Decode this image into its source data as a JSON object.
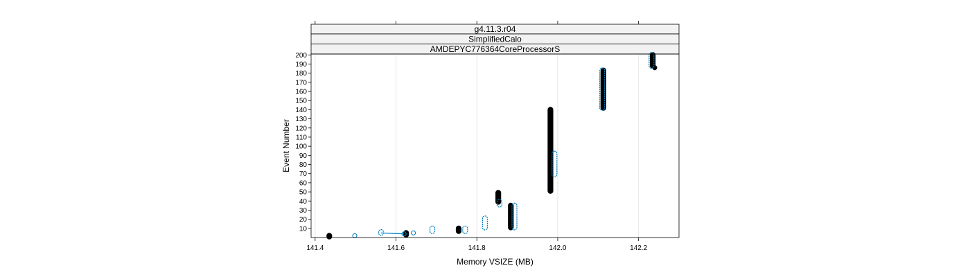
{
  "chart_data": {
    "type": "scatter",
    "strips": [
      "g4.11.3.r04",
      "SimplifiedCalo",
      "AMDEPYC776364CoreProcessorS"
    ],
    "xlabel": "Memory VSIZE (MB)",
    "ylabel": "Event Number",
    "xlim": [
      141.39,
      142.3
    ],
    "ylim": [
      0,
      201
    ],
    "x_ticks": [
      "141.4",
      "141.6",
      "141.8",
      "142.0",
      "142.2"
    ],
    "x_tick_values": [
      141.4,
      141.6,
      141.8,
      142.0,
      142.2
    ],
    "y_ticks": [
      "10",
      "20",
      "30",
      "40",
      "50",
      "60",
      "70",
      "80",
      "90",
      "100",
      "110",
      "120",
      "130",
      "140",
      "150",
      "160",
      "170",
      "180",
      "190",
      "200"
    ],
    "y_tick_values": [
      10,
      20,
      30,
      40,
      50,
      60,
      70,
      80,
      90,
      100,
      110,
      120,
      130,
      140,
      150,
      160,
      170,
      180,
      190,
      200
    ],
    "grid": "vertical",
    "series": [
      {
        "color": "#000000",
        "style": "filled",
        "segments": [
          {
            "x": 141.435,
            "y0": 1,
            "y1": 2
          },
          {
            "x": 141.625,
            "y0": 3,
            "y1": 5
          },
          {
            "x": 141.755,
            "y0": 7,
            "y1": 10
          },
          {
            "x": 141.853,
            "y0": 39,
            "y1": 49
          },
          {
            "x": 141.884,
            "y0": 11,
            "y1": 35
          },
          {
            "x": 141.982,
            "y0": 51,
            "y1": 140
          },
          {
            "x": 142.113,
            "y0": 142,
            "y1": 183
          },
          {
            "x": 142.235,
            "y0": 188,
            "y1": 200
          },
          {
            "x": 142.24,
            "y0": 186,
            "y1": 186
          }
        ]
      },
      {
        "color": "#0080c0",
        "style": "open",
        "segments": [
          {
            "x": 141.498,
            "y0": 2,
            "y1": 2
          },
          {
            "x": 141.563,
            "y0": 5,
            "y1": 6
          },
          {
            "x": 141.62,
            "y0": 4,
            "y1": 4
          },
          {
            "x": 141.643,
            "y0": 5,
            "y1": 5
          },
          {
            "x": 141.69,
            "y0": 7,
            "y1": 10
          },
          {
            "x": 141.771,
            "y0": 7,
            "y1": 10
          },
          {
            "x": 141.82,
            "y0": 11,
            "y1": 21
          },
          {
            "x": 141.856,
            "y0": 36,
            "y1": 39
          },
          {
            "x": 141.893,
            "y0": 11,
            "y1": 35
          },
          {
            "x": 141.992,
            "y0": 69,
            "y1": 92
          },
          {
            "x": 142.11,
            "y0": 142,
            "y1": 183
          },
          {
            "x": 142.232,
            "y0": 188,
            "y1": 200
          }
        ]
      }
    ]
  }
}
